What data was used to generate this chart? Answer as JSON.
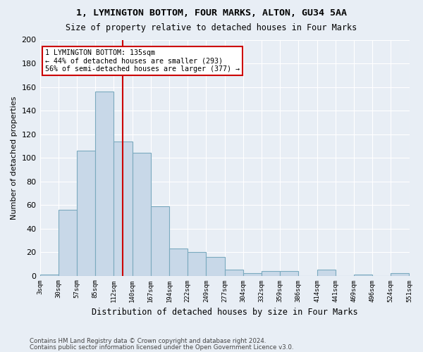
{
  "title1": "1, LYMINGTON BOTTOM, FOUR MARKS, ALTON, GU34 5AA",
  "title2": "Size of property relative to detached houses in Four Marks",
  "xlabel": "Distribution of detached houses by size in Four Marks",
  "ylabel": "Number of detached properties",
  "footer1": "Contains HM Land Registry data © Crown copyright and database right 2024.",
  "footer2": "Contains public sector information licensed under the Open Government Licence v3.0.",
  "bin_labels": [
    "3sqm",
    "30sqm",
    "57sqm",
    "85sqm",
    "112sqm",
    "140sqm",
    "167sqm",
    "194sqm",
    "222sqm",
    "249sqm",
    "277sqm",
    "304sqm",
    "332sqm",
    "359sqm",
    "386sqm",
    "414sqm",
    "441sqm",
    "469sqm",
    "496sqm",
    "524sqm",
    "551sqm"
  ],
  "bar_heights": [
    1,
    56,
    106,
    156,
    114,
    104,
    59,
    23,
    20,
    16,
    5,
    2,
    4,
    4,
    0,
    5,
    0,
    1,
    0,
    2
  ],
  "bar_color": "#c8d8e8",
  "bar_edge_color": "#7baabf",
  "vline_color": "#cc0000",
  "annotation_title": "1 LYMINGTON BOTTOM: 135sqm",
  "annotation_line1": "← 44% of detached houses are smaller (293)",
  "annotation_line2": "56% of semi-detached houses are larger (377) →",
  "annotation_box_edge_color": "#cc0000",
  "ylim": [
    0,
    200
  ],
  "yticks": [
    0,
    20,
    40,
    60,
    80,
    100,
    120,
    140,
    160,
    180,
    200
  ],
  "bg_color": "#e8eef5",
  "plot_bg_color": "#e8eef5",
  "grid_color": "#ffffff"
}
